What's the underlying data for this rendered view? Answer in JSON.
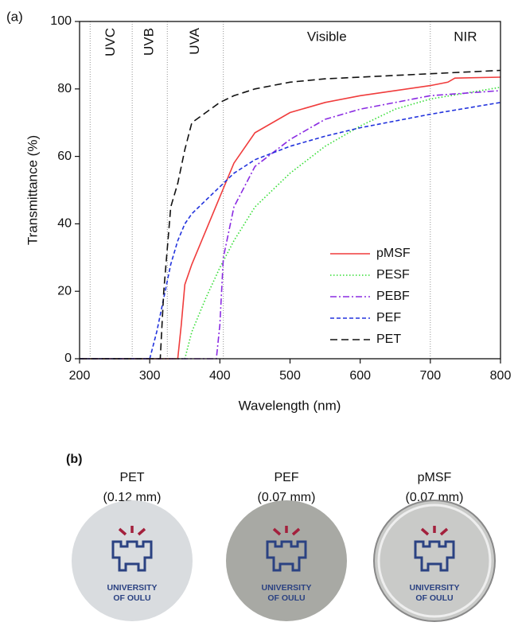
{
  "chart_data": {
    "type": "line",
    "panel_label": "(a)",
    "x_label": "Wavelength (nm)",
    "y_label": "Transmittance (%)",
    "xlim": [
      200,
      800
    ],
    "xticks": [
      200,
      300,
      400,
      500,
      600,
      700,
      800
    ],
    "ylim": [
      0,
      100
    ],
    "yticks": [
      0,
      20,
      40,
      60,
      80,
      100
    ],
    "region_boundaries": [
      215,
      275,
      325,
      405,
      700
    ],
    "regions": [
      {
        "label": "UVC",
        "rotated": true
      },
      {
        "label": "UVB",
        "rotated": true
      },
      {
        "label": "UVA",
        "rotated": true
      },
      {
        "label": "Visible",
        "rotated": false
      },
      {
        "label": "NIR",
        "rotated": false
      }
    ],
    "legend": "lower right",
    "series": [
      {
        "name": "pMSF",
        "color": "#f03c3c",
        "dash": "solid",
        "x": [
          200,
          340,
          345,
          350,
          360,
          380,
          400,
          420,
          450,
          500,
          550,
          600,
          650,
          700,
          725,
          735,
          800
        ],
        "values": [
          0,
          0,
          10,
          22,
          28,
          38,
          48,
          58,
          67,
          73,
          76,
          78,
          79.5,
          81,
          82,
          83.2,
          83.5
        ]
      },
      {
        "name": "PESF",
        "color": "#33dd33",
        "dash": "dotted",
        "x": [
          200,
          350,
          360,
          380,
          400,
          420,
          450,
          500,
          550,
          600,
          650,
          700,
          800
        ],
        "values": [
          0,
          0,
          8,
          18,
          27,
          35,
          45,
          55,
          63,
          69,
          74,
          77,
          80.5
        ]
      },
      {
        "name": "PEBF",
        "color": "#8a2be2",
        "dash": "dashdot",
        "x": [
          200,
          395,
          400,
          405,
          420,
          450,
          500,
          550,
          600,
          650,
          700,
          800
        ],
        "values": [
          0,
          0,
          10,
          30,
          45,
          57,
          65,
          71,
          74,
          76,
          78,
          79.5
        ]
      },
      {
        "name": "PEF",
        "color": "#2233dd",
        "dash": "dashed",
        "x": [
          200,
          300,
          310,
          320,
          330,
          340,
          350,
          360,
          380,
          400,
          420,
          450,
          500,
          550,
          600,
          650,
          700,
          800
        ],
        "values": [
          0,
          0,
          8,
          18,
          28,
          35,
          40,
          43,
          47,
          51,
          55,
          59,
          63,
          66,
          68.5,
          70.5,
          72.5,
          76
        ]
      },
      {
        "name": "PET",
        "color": "#111111",
        "dash": "longdash",
        "x": [
          200,
          315,
          320,
          330,
          340,
          350,
          360,
          380,
          400,
          420,
          450,
          500,
          550,
          600,
          650,
          700,
          800
        ],
        "values": [
          0,
          0,
          20,
          45,
          52,
          62,
          70,
          73,
          76,
          78,
          80,
          82,
          83,
          83.5,
          84,
          84.5,
          85.5
        ]
      }
    ]
  },
  "panel_b": {
    "label": "(b)",
    "logo_text": [
      "UNIVERSITY",
      "OF OULU"
    ],
    "samples": [
      {
        "name": "PET",
        "thickness": "(0.12 mm)"
      },
      {
        "name": "PEF",
        "thickness": "(0.07 mm)"
      },
      {
        "name": "pMSF",
        "thickness": "(0.07 mm)"
      }
    ]
  }
}
